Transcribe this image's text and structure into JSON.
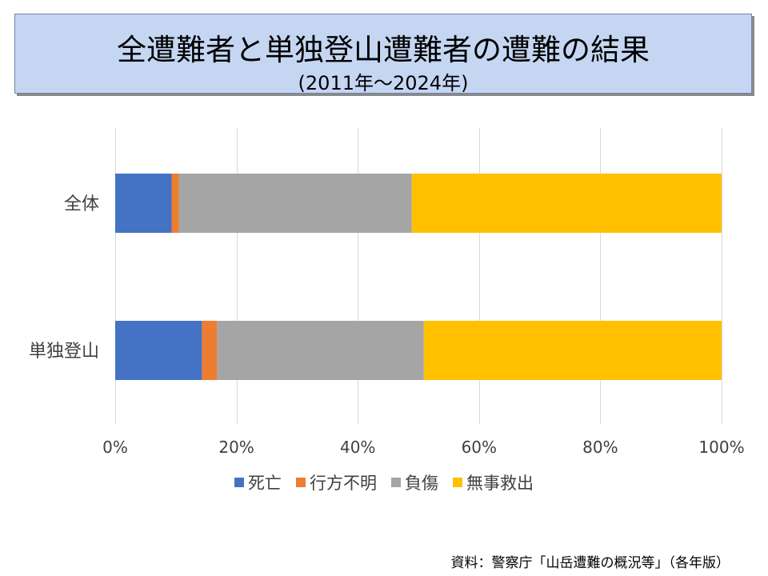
{
  "title": {
    "main": "全遭難者と単独登山遭難者の遭難の結果",
    "sub": "(2011年～2024年)"
  },
  "source": "資料：警察庁「山岳遭難の概況等」（各年版）",
  "chart_data": {
    "type": "bar",
    "orientation": "horizontal",
    "stacked": "percent",
    "categories": [
      "全体",
      "単独登山"
    ],
    "series": [
      {
        "name": "死亡",
        "color": "#4472c4",
        "values": [
          9.3,
          14.3
        ]
      },
      {
        "name": "行方不明",
        "color": "#ed7d31",
        "values": [
          1.2,
          2.5
        ]
      },
      {
        "name": "負傷",
        "color": "#a5a5a5",
        "values": [
          38.4,
          34.1
        ]
      },
      {
        "name": "無事救出",
        "color": "#ffc000",
        "values": [
          51.1,
          49.1
        ]
      }
    ],
    "xlim": [
      0,
      100
    ],
    "xticks": [
      "0%",
      "20%",
      "40%",
      "60%",
      "80%",
      "100%"
    ],
    "grid": true,
    "legend_position": "bottom"
  }
}
